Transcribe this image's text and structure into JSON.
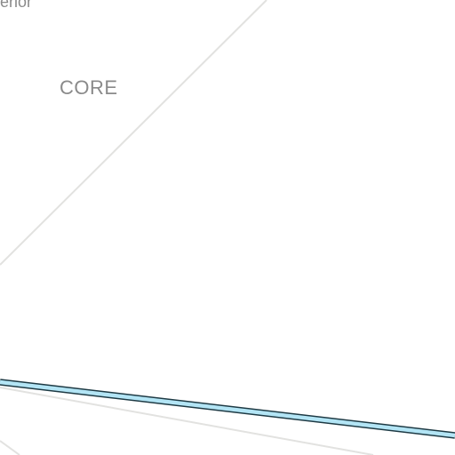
{
  "map": {
    "labels": {
      "top_cut": "ifterior",
      "area": "CORE"
    },
    "colors": {
      "background": "#ffffff",
      "minor_road": "#e2e2e0",
      "highlighted_road_fill": "#b3e5f5",
      "highlighted_road_outline": "#1e3a44",
      "label_text": "#8a8a8a"
    }
  }
}
